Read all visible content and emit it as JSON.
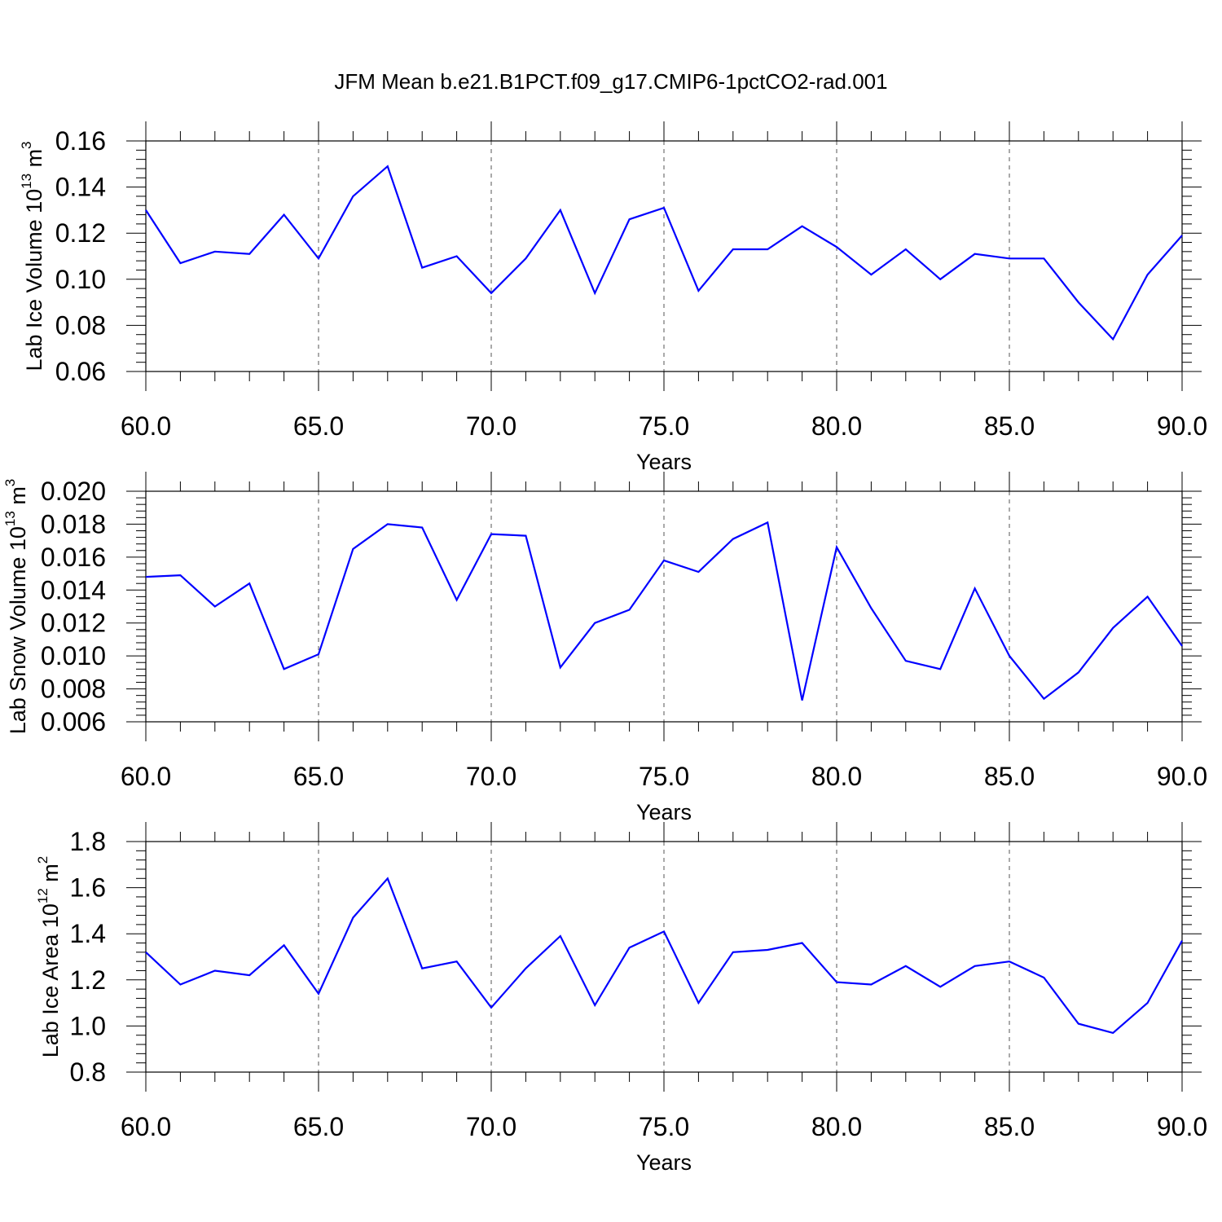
{
  "title": "JFM Mean b.e21.B1PCT.f09_g17.CMIP6-1pctCO2-rad.001",
  "colors": {
    "series": "#0000ff",
    "axis": "#000000",
    "grid": "#555555"
  },
  "chart_data": [
    {
      "type": "line",
      "ylabel_main": "Lab Ice Volume 10",
      "ylabel_exp": "13",
      "ylabel_unit": " m",
      "ylabel_unit_exp": "3",
      "xlabel": "Years",
      "xlim": [
        60,
        90
      ],
      "ylim": [
        0.06,
        0.16
      ],
      "x_ticks": [
        "60.0",
        "65.0",
        "70.0",
        "75.0",
        "80.0",
        "85.0",
        "90.0"
      ],
      "y_ticks": [
        "0.06",
        "0.08",
        "0.10",
        "0.12",
        "0.14",
        "0.16"
      ],
      "x": [
        60,
        61,
        62,
        63,
        64,
        65,
        66,
        67,
        68,
        69,
        70,
        71,
        72,
        73,
        74,
        75,
        76,
        77,
        78,
        79,
        80,
        81,
        82,
        83,
        84,
        85,
        86,
        87,
        88,
        89,
        90
      ],
      "series": [
        {
          "values": [
            0.13,
            0.107,
            0.112,
            0.111,
            0.128,
            0.109,
            0.136,
            0.149,
            0.105,
            0.11,
            0.094,
            0.109,
            0.13,
            0.094,
            0.126,
            0.131,
            0.095,
            0.113,
            0.113,
            0.123,
            0.114,
            0.102,
            0.113,
            0.1,
            0.111,
            0.109,
            0.109,
            0.09,
            0.074,
            0.102,
            0.119
          ]
        }
      ]
    },
    {
      "type": "line",
      "ylabel_main": "Lab Snow Volume 10",
      "ylabel_exp": "13",
      "ylabel_unit": " m",
      "ylabel_unit_exp": "3",
      "xlabel": "Years",
      "xlim": [
        60,
        90
      ],
      "ylim": [
        0.006,
        0.02
      ],
      "x_ticks": [
        "60.0",
        "65.0",
        "70.0",
        "75.0",
        "80.0",
        "85.0",
        "90.0"
      ],
      "y_ticks": [
        "0.006",
        "0.008",
        "0.010",
        "0.012",
        "0.014",
        "0.016",
        "0.018",
        "0.020"
      ],
      "x": [
        60,
        61,
        62,
        63,
        64,
        65,
        66,
        67,
        68,
        69,
        70,
        71,
        72,
        73,
        74,
        75,
        76,
        77,
        78,
        79,
        80,
        81,
        82,
        83,
        84,
        85,
        86,
        87,
        88,
        89,
        90
      ],
      "series": [
        {
          "values": [
            0.0148,
            0.0149,
            0.013,
            0.0144,
            0.0092,
            0.0101,
            0.0165,
            0.018,
            0.0178,
            0.0134,
            0.0174,
            0.0173,
            0.0093,
            0.012,
            0.0128,
            0.0158,
            0.0151,
            0.0171,
            0.0181,
            0.0073,
            0.0166,
            0.0129,
            0.0097,
            0.0092,
            0.0141,
            0.01,
            0.0074,
            0.009,
            0.0117,
            0.0136,
            0.0106
          ]
        }
      ]
    },
    {
      "type": "line",
      "ylabel_main": "Lab Ice Area 10",
      "ylabel_exp": "12",
      "ylabel_unit": " m",
      "ylabel_unit_exp": "2",
      "xlabel": "Years",
      "xlim": [
        60,
        90
      ],
      "ylim": [
        0.8,
        1.8
      ],
      "x_ticks": [
        "60.0",
        "65.0",
        "70.0",
        "75.0",
        "80.0",
        "85.0",
        "90.0"
      ],
      "y_ticks": [
        "0.8",
        "1.0",
        "1.2",
        "1.4",
        "1.6",
        "1.8"
      ],
      "x": [
        60,
        61,
        62,
        63,
        64,
        65,
        66,
        67,
        68,
        69,
        70,
        71,
        72,
        73,
        74,
        75,
        76,
        77,
        78,
        79,
        80,
        81,
        82,
        83,
        84,
        85,
        86,
        87,
        88,
        89,
        90
      ],
      "series": [
        {
          "values": [
            1.32,
            1.18,
            1.24,
            1.22,
            1.35,
            1.14,
            1.47,
            1.64,
            1.25,
            1.28,
            1.08,
            1.25,
            1.39,
            1.09,
            1.34,
            1.41,
            1.1,
            1.32,
            1.33,
            1.36,
            1.19,
            1.18,
            1.26,
            1.17,
            1.26,
            1.28,
            1.21,
            1.01,
            0.97,
            1.1,
            1.37
          ]
        }
      ]
    }
  ]
}
